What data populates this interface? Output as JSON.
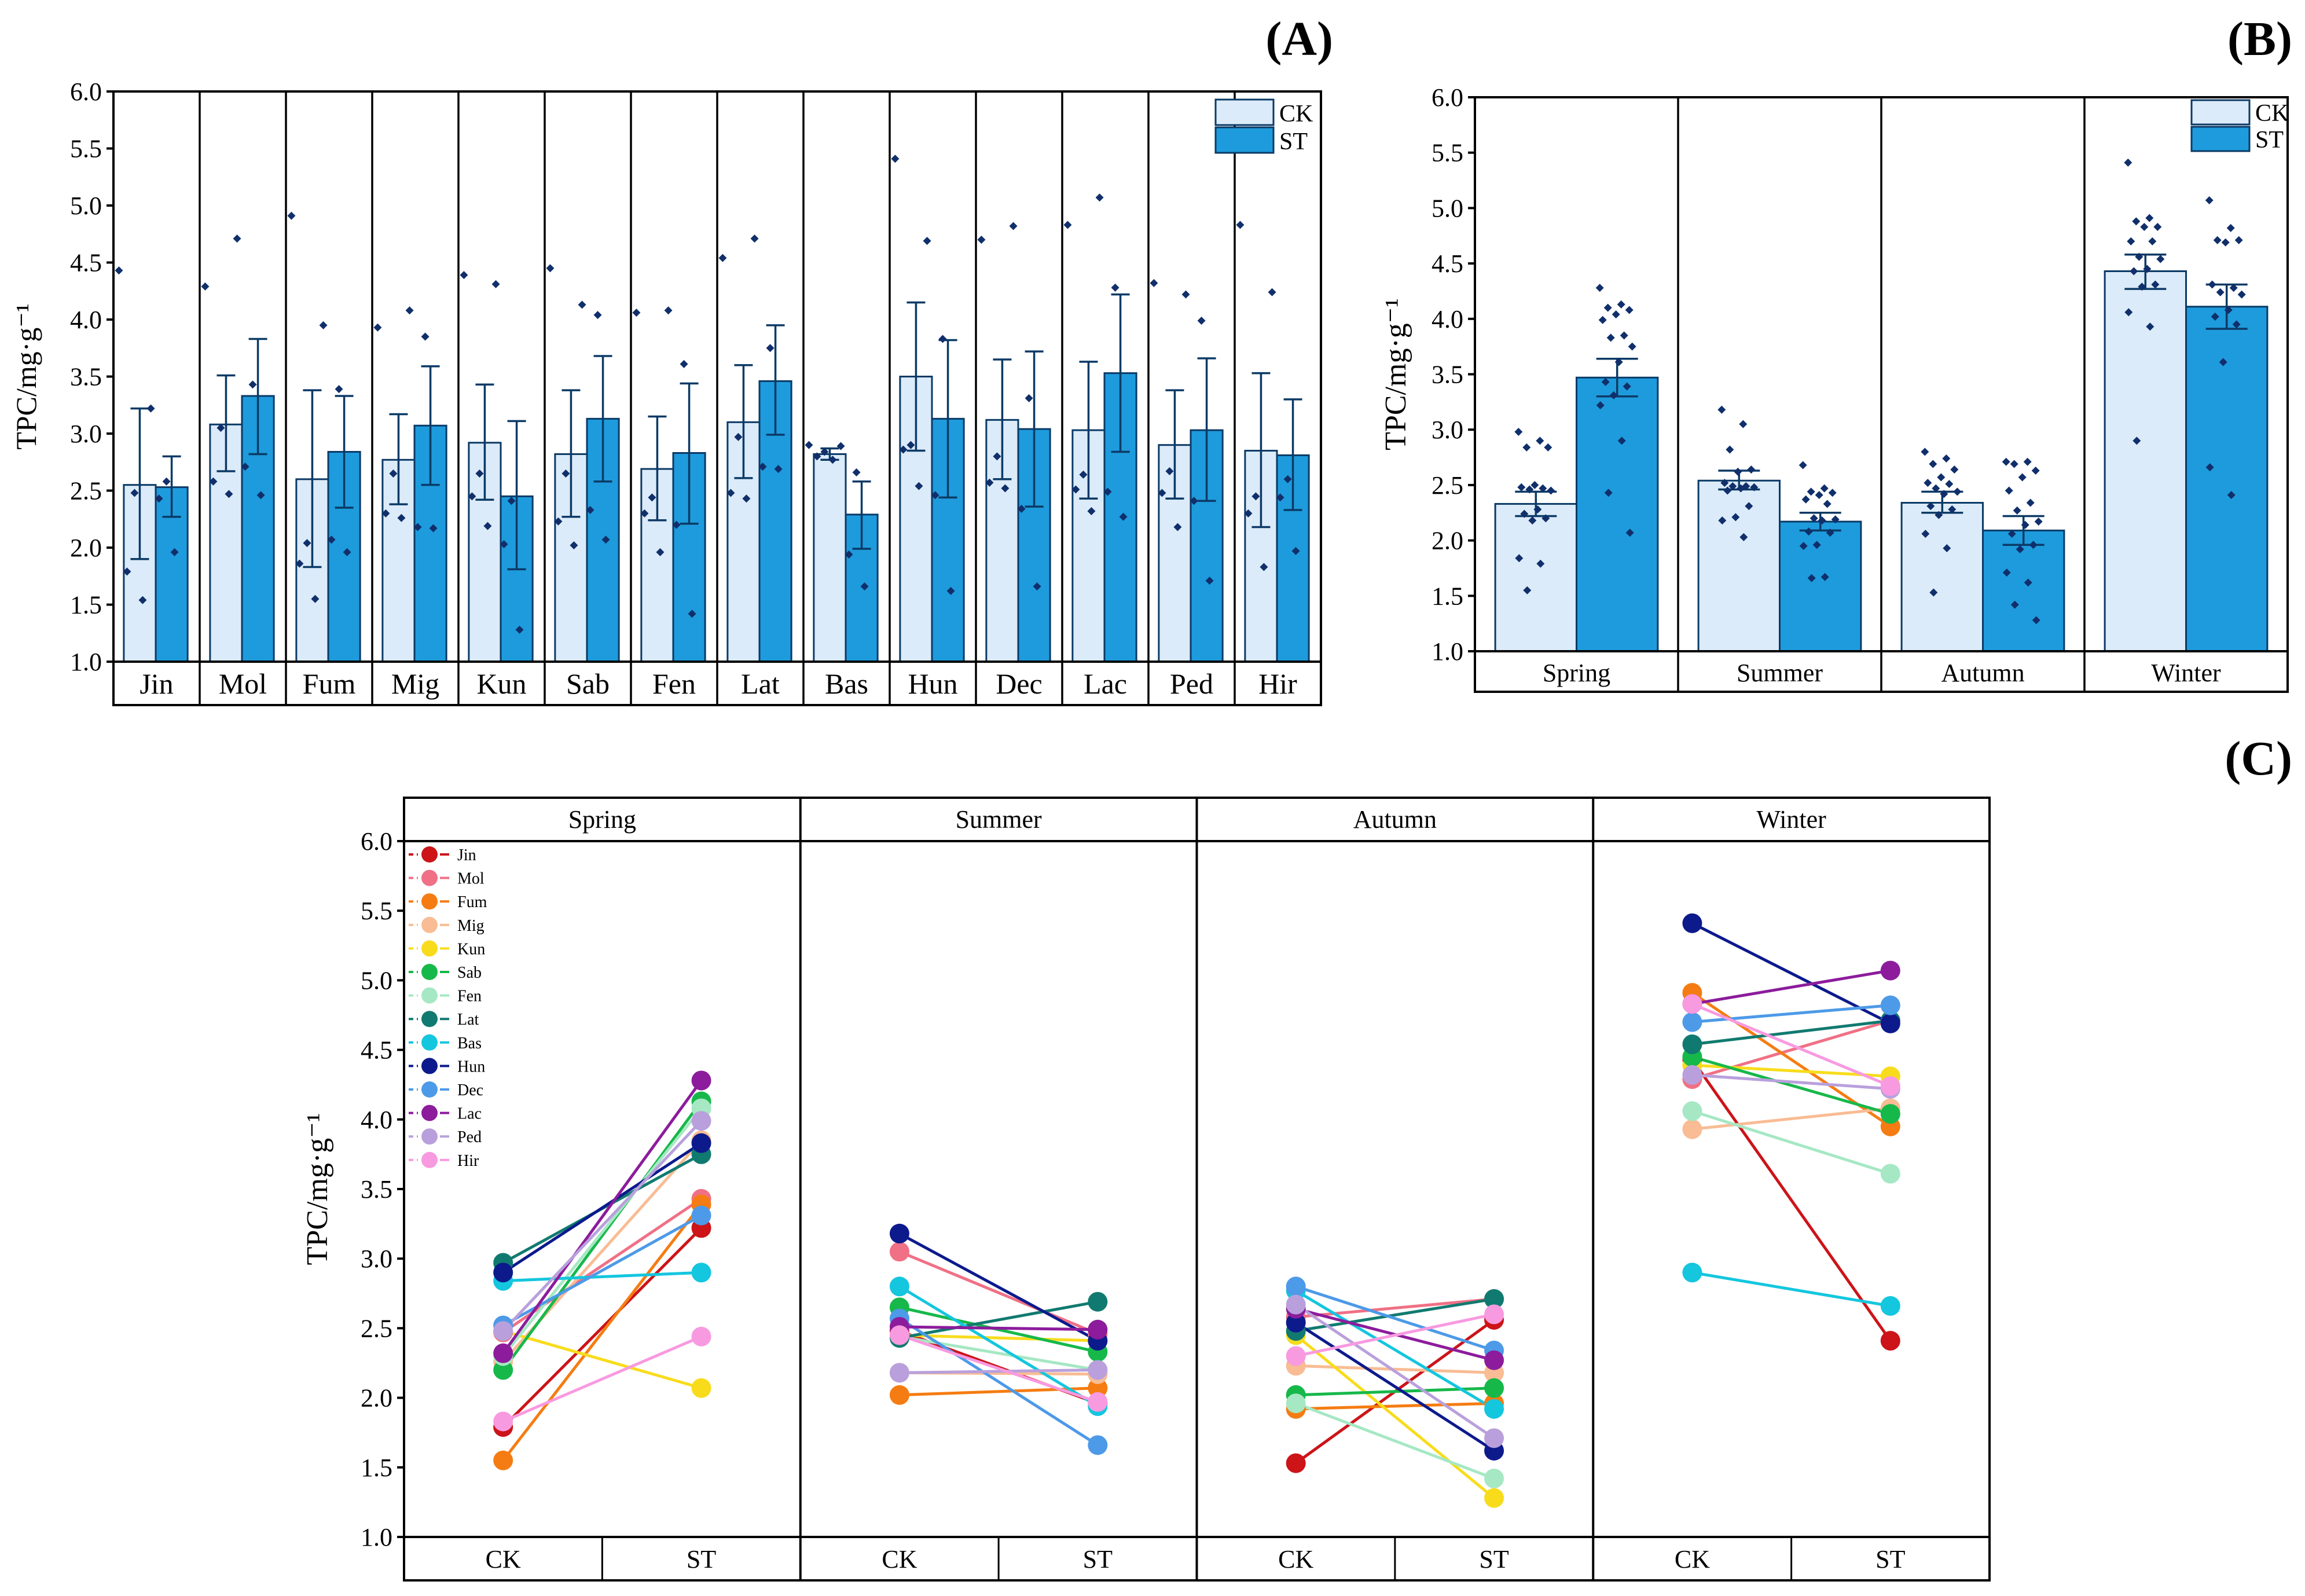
{
  "colors": {
    "ck": "#dcebf9",
    "st": "#1e9bdc",
    "bar_edge": "#0b3a66",
    "point": "#102f6b",
    "frame": "#000000"
  },
  "chart_data": [
    {
      "panel": "(A)",
      "type": "bar",
      "ylabel": "TPC/mg·g⁻¹",
      "ylim": [
        1.0,
        6.0
      ],
      "yticks": [
        "1.0",
        "1.5",
        "2.0",
        "2.5",
        "3.0",
        "3.5",
        "4.0",
        "4.5",
        "5.0",
        "5.5",
        "6.0"
      ],
      "legend_position": "top-right",
      "categories": [
        "Jin",
        "Mol",
        "Fum",
        "Mig",
        "Kun",
        "Sab",
        "Fen",
        "Lat",
        "Bas",
        "Hun",
        "Dec",
        "Lac",
        "Ped",
        "Hir"
      ],
      "series": [
        {
          "name": "CK",
          "values": [
            2.55,
            3.08,
            2.6,
            2.77,
            2.92,
            2.82,
            2.69,
            3.1,
            2.82,
            3.5,
            3.12,
            3.03,
            2.9,
            2.85
          ],
          "err_low": [
            1.9,
            2.67,
            1.83,
            2.38,
            2.42,
            2.27,
            2.24,
            2.61,
            2.77,
            2.85,
            2.6,
            2.43,
            2.43,
            2.18
          ],
          "err_high": [
            3.22,
            3.51,
            3.38,
            3.17,
            3.43,
            3.38,
            3.15,
            3.6,
            2.87,
            4.15,
            3.65,
            3.63,
            3.38,
            3.53
          ],
          "points": [
            [
              4.43,
              2.48,
              1.79,
              1.54
            ],
            [
              4.29,
              3.05,
              2.58,
              2.47
            ],
            [
              4.91,
              2.04,
              1.86,
              1.55
            ],
            [
              3.93,
              2.65,
              2.3,
              2.26
            ],
            [
              4.39,
              2.65,
              2.45,
              2.19
            ],
            [
              4.45,
              2.65,
              2.23,
              2.02
            ],
            [
              4.06,
              2.44,
              2.3,
              1.96
            ],
            [
              4.54,
              2.97,
              2.48,
              2.43
            ],
            [
              2.9,
              2.84,
              2.8,
              2.77
            ],
            [
              5.41,
              2.9,
              2.86,
              2.54
            ],
            [
              4.7,
              2.8,
              2.57,
              2.52
            ],
            [
              4.83,
              2.64,
              2.51,
              2.32
            ],
            [
              4.32,
              2.67,
              2.48,
              2.18
            ],
            [
              4.83,
              2.45,
              2.3,
              1.83
            ]
          ]
        },
        {
          "name": "ST",
          "values": [
            2.53,
            3.33,
            2.84,
            3.07,
            2.45,
            3.13,
            2.83,
            3.46,
            2.29,
            3.13,
            3.04,
            3.53,
            3.03,
            2.81
          ],
          "err_low": [
            2.27,
            2.82,
            2.35,
            2.55,
            1.81,
            2.58,
            2.21,
            2.99,
            1.99,
            2.44,
            2.36,
            2.84,
            2.41,
            2.33
          ],
          "err_high": [
            2.8,
            3.83,
            3.33,
            3.59,
            3.11,
            3.68,
            3.44,
            3.95,
            2.58,
            3.82,
            3.72,
            4.22,
            3.66,
            3.3
          ],
          "points": [
            [
              3.22,
              2.58,
              2.43,
              1.96
            ],
            [
              4.71,
              3.43,
              2.71,
              2.46
            ],
            [
              3.95,
              3.39,
              2.07,
              1.96
            ],
            [
              4.08,
              3.85,
              2.18,
              2.17
            ],
            [
              4.31,
              2.41,
              2.03,
              1.28
            ],
            [
              4.13,
              4.04,
              2.33,
              2.07
            ],
            [
              4.08,
              3.61,
              2.2,
              1.42
            ],
            [
              4.71,
              3.75,
              2.71,
              2.69
            ],
            [
              2.89,
              2.66,
              1.94,
              1.66
            ],
            [
              4.69,
              3.83,
              2.46,
              1.62
            ],
            [
              4.82,
              3.31,
              2.34,
              1.66
            ],
            [
              5.07,
              4.28,
              2.49,
              2.27
            ],
            [
              4.22,
              3.99,
              2.41,
              1.71
            ],
            [
              4.24,
              2.6,
              2.44,
              1.97
            ]
          ]
        }
      ]
    },
    {
      "panel": "(B)",
      "type": "bar",
      "ylabel": "TPC/mg·g⁻¹",
      "ylim": [
        1.0,
        6.0
      ],
      "yticks": [
        "1.0",
        "1.5",
        "2.0",
        "2.5",
        "3.0",
        "3.5",
        "4.0",
        "4.5",
        "5.0",
        "5.5",
        "6.0"
      ],
      "legend_position": "top-right",
      "categories": [
        "Spring",
        "Summer",
        "Autumn",
        "Winter"
      ],
      "series": [
        {
          "name": "CK",
          "values": [
            2.33,
            2.54,
            2.34,
            4.43
          ],
          "err_low": [
            2.22,
            2.46,
            2.25,
            4.27
          ],
          "err_high": [
            2.44,
            2.63,
            2.44,
            4.58
          ],
          "points": [
            [
              2.98,
              2.9,
              2.84,
              2.84,
              2.5,
              2.48,
              2.47,
              2.46,
              2.45,
              2.28,
              2.24,
              2.2,
              2.18,
              1.84,
              1.79,
              1.55
            ],
            [
              3.18,
              3.05,
              2.82,
              2.64,
              2.62,
              2.52,
              2.49,
              2.49,
              2.48,
              2.47,
              2.45,
              2.31,
              2.21,
              2.18,
              2.03
            ],
            [
              2.8,
              2.74,
              2.69,
              2.64,
              2.57,
              2.52,
              2.51,
              2.47,
              2.44,
              2.42,
              2.31,
              2.28,
              2.23,
              2.06,
              1.93,
              1.53
            ],
            [
              5.41,
              4.91,
              4.88,
              4.83,
              4.83,
              4.7,
              4.7,
              4.56,
              4.54,
              4.45,
              4.43,
              4.31,
              4.29,
              4.06,
              3.93,
              2.9
            ]
          ]
        },
        {
          "name": "ST",
          "values": [
            3.47,
            2.17,
            2.09,
            4.11
          ],
          "err_low": [
            3.3,
            2.09,
            1.96,
            3.91
          ],
          "err_high": [
            3.64,
            2.25,
            2.22,
            4.31
          ],
          "points": [
            [
              4.28,
              4.13,
              4.1,
              4.08,
              4.04,
              3.99,
              3.85,
              3.83,
              3.75,
              3.61,
              3.43,
              3.39,
              3.31,
              3.22,
              2.9,
              2.43,
              2.07
            ],
            [
              2.68,
              2.47,
              2.44,
              2.43,
              2.41,
              2.37,
              2.33,
              2.2,
              2.19,
              2.18,
              2.08,
              2.07,
              1.96,
              1.95,
              1.67,
              1.66
            ],
            [
              2.71,
              2.71,
              2.69,
              2.63,
              2.57,
              2.45,
              2.34,
              2.27,
              2.17,
              2.14,
              2.06,
              1.96,
              1.92,
              1.71,
              1.62,
              1.42,
              1.28
            ],
            [
              5.07,
              4.82,
              4.71,
              4.71,
              4.69,
              4.31,
              4.28,
              4.24,
              4.22,
              4.08,
              4.02,
              3.95,
              3.61,
              2.66,
              2.41
            ]
          ]
        }
      ]
    },
    {
      "panel": "(C)",
      "type": "line",
      "ylabel": "TPC/mg·g⁻¹",
      "ylim": [
        1.0,
        6.0
      ],
      "yticks": [
        "1.0",
        "1.5",
        "2.0",
        "2.5",
        "3.0",
        "3.5",
        "4.0",
        "4.5",
        "5.0",
        "5.5",
        "6.0"
      ],
      "facets": [
        "Spring",
        "Summer",
        "Autumn",
        "Winter"
      ],
      "x": [
        "CK",
        "ST"
      ],
      "series": [
        {
          "name": "Jin",
          "color": "#cc1419",
          "values": [
            [
              1.79,
              3.22
            ],
            [
              2.48,
              1.96
            ],
            [
              1.53,
              2.56
            ],
            [
              4.43,
              2.41
            ]
          ]
        },
        {
          "name": "Mol",
          "color": "#f07085",
          "values": [
            [
              2.47,
              3.43
            ],
            [
              3.05,
              2.46
            ],
            [
              2.58,
              2.71
            ],
            [
              4.29,
              4.71
            ]
          ]
        },
        {
          "name": "Fum",
          "color": "#f57c12",
          "values": [
            [
              1.55,
              3.39
            ],
            [
              2.02,
              2.07
            ],
            [
              1.92,
              1.96
            ],
            [
              4.91,
              3.95
            ]
          ]
        },
        {
          "name": "Mig",
          "color": "#f9bc94",
          "values": [
            [
              2.26,
              3.85
            ],
            [
              2.18,
              2.17
            ],
            [
              2.23,
              2.18
            ],
            [
              3.93,
              4.08
            ]
          ]
        },
        {
          "name": "Kun",
          "color": "#f8dc1c",
          "values": [
            [
              2.48,
              2.07
            ],
            [
              2.45,
              2.41
            ],
            [
              2.45,
              1.28
            ],
            [
              4.39,
              4.31
            ]
          ]
        },
        {
          "name": "Sab",
          "color": "#17b84a",
          "values": [
            [
              2.2,
              4.13
            ],
            [
              2.65,
              2.33
            ],
            [
              2.02,
              2.07
            ],
            [
              4.45,
              4.04
            ]
          ]
        },
        {
          "name": "Fen",
          "color": "#a6e8c4",
          "values": [
            [
              2.3,
              4.08
            ],
            [
              2.44,
              2.2
            ],
            [
              1.96,
              1.42
            ],
            [
              4.06,
              3.61
            ]
          ]
        },
        {
          "name": "Lat",
          "color": "#117a70",
          "values": [
            [
              2.97,
              3.75
            ],
            [
              2.43,
              2.69
            ],
            [
              2.48,
              2.71
            ],
            [
              4.54,
              4.71
            ]
          ]
        },
        {
          "name": "Bas",
          "color": "#14c6de",
          "values": [
            [
              2.84,
              2.9
            ],
            [
              2.8,
              1.94
            ],
            [
              2.77,
              1.92
            ],
            [
              2.9,
              2.66
            ]
          ]
        },
        {
          "name": "Hun",
          "color": "#0c1a8c",
          "values": [
            [
              2.9,
              3.83
            ],
            [
              3.18,
              2.41
            ],
            [
              2.54,
              1.62
            ],
            [
              5.41,
              4.69
            ]
          ]
        },
        {
          "name": "Dec",
          "color": "#4d9ae8",
          "values": [
            [
              2.52,
              3.31
            ],
            [
              2.57,
              1.66
            ],
            [
              2.8,
              2.34
            ],
            [
              4.7,
              4.82
            ]
          ]
        },
        {
          "name": "Lac",
          "color": "#8c1c9c",
          "values": [
            [
              2.32,
              4.28
            ],
            [
              2.51,
              2.49
            ],
            [
              2.64,
              2.27
            ],
            [
              4.83,
              5.07
            ]
          ]
        },
        {
          "name": "Ped",
          "color": "#b9a0dc",
          "values": [
            [
              2.48,
              3.99
            ],
            [
              2.18,
              2.2
            ],
            [
              2.67,
              1.71
            ],
            [
              4.32,
              4.22
            ]
          ]
        },
        {
          "name": "Hir",
          "color": "#f89ae0",
          "values": [
            [
              1.83,
              2.44
            ],
            [
              2.45,
              1.97
            ],
            [
              2.3,
              2.6
            ],
            [
              4.83,
              4.24
            ]
          ]
        }
      ]
    }
  ]
}
